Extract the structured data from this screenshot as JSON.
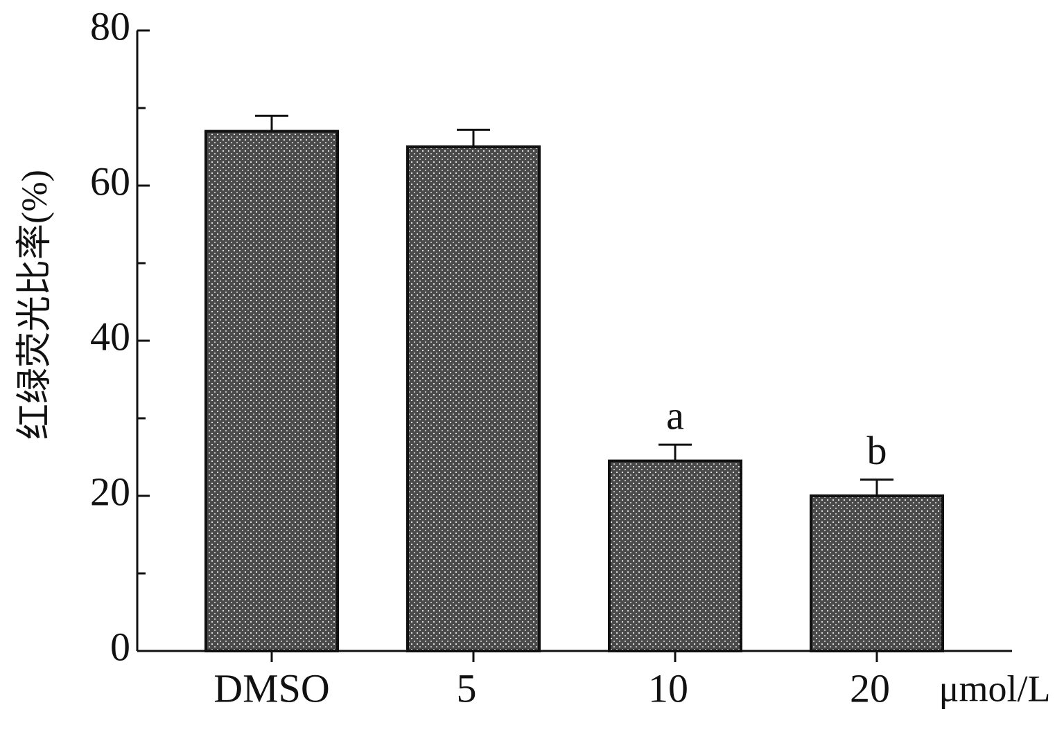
{
  "chart_data": {
    "type": "bar",
    "y_label": "红绿荧光比率(%)",
    "x_unit": "μmol/L",
    "categories": [
      "DMSO",
      "5",
      "10",
      "20"
    ],
    "values": [
      67,
      65,
      24.5,
      20
    ],
    "errors": [
      2,
      2.2,
      2.1,
      2.1
    ],
    "annotations": [
      {
        "text": "a",
        "category": "10"
      },
      {
        "text": "b",
        "category": "20"
      }
    ],
    "color": "#4a4a4a",
    "ylim": [
      0,
      80
    ],
    "yticks": [
      0,
      20,
      40,
      60,
      80
    ],
    "minor_yticks": [
      10,
      30,
      50,
      70
    ],
    "grid": false
  }
}
